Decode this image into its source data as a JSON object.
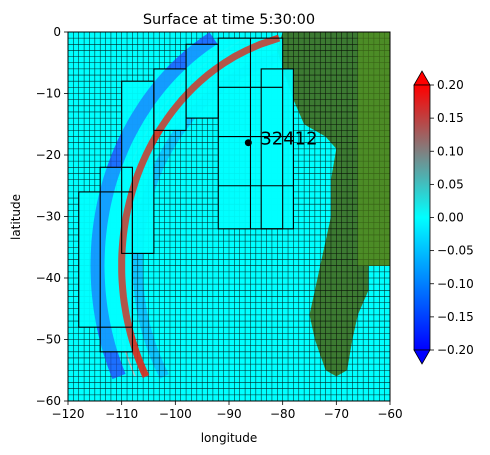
{
  "chart_data": {
    "type": "heatmap",
    "title": "Surface at time 5:30:00",
    "xlabel": "longitude",
    "ylabel": "latitude",
    "xlim": [
      -120,
      -60
    ],
    "ylim": [
      -60,
      0
    ],
    "xticks": [
      -120,
      -110,
      -100,
      -90,
      -80,
      -70,
      -60
    ],
    "yticks": [
      0,
      -10,
      -20,
      -30,
      -40,
      -50,
      -60
    ],
    "x_tick_labels": [
      "−120",
      "−110",
      "−100",
      "−90",
      "−80",
      "−70",
      "−60"
    ],
    "y_tick_labels": [
      "0",
      "−10",
      "−20",
      "−30",
      "−40",
      "−50",
      "−60"
    ],
    "colorbar": {
      "min": -0.2,
      "max": 0.2,
      "extend": "both",
      "ticks": [
        0.2,
        0.15,
        0.1,
        0.05,
        0.0,
        -0.05,
        -0.1,
        -0.15,
        -0.2
      ],
      "tick_labels": [
        "0.20",
        "0.15",
        "0.10",
        "0.05",
        "0.00",
        "−0.05",
        "−0.10",
        "−0.15",
        "−0.20"
      ],
      "colors": [
        "#0000ff",
        "#00ffff",
        "#808080",
        "#ff0000"
      ]
    },
    "colors": {
      "water": "#00ffff",
      "land": "#3c7a32",
      "land_light": "#5a9a1e",
      "wave_crest": "#d03a2a",
      "wave_trough": "#2060ff",
      "gauge": "#000000"
    },
    "gauge": {
      "label": "32412",
      "x": -86.4,
      "y": -18.0
    },
    "wavefront": {
      "center_lon": -72,
      "center_lat": -38,
      "radius_deg": 38,
      "lat_range": [
        -56,
        -1
      ]
    },
    "fine_grid_spacing_deg": 1,
    "coarse_patches": [
      {
        "x0": -104,
        "x1": -98,
        "y0": -16,
        "y1": -6
      },
      {
        "x0": -98,
        "x1": -92,
        "y0": -14,
        "y1": -2
      },
      {
        "x0": -110,
        "x1": -104,
        "y0": -36,
        "y1": -8
      },
      {
        "x0": -114,
        "x1": -108,
        "y0": -52,
        "y1": -22
      },
      {
        "x0": -92,
        "x1": -80,
        "y0": -32,
        "y1": -1
      },
      {
        "x0": -84,
        "x1": -78,
        "y0": -32,
        "y1": -6
      },
      {
        "x0": -118,
        "x1": -108,
        "y0": -48,
        "y1": -26
      }
    ],
    "land_region": [
      [
        -80,
        0
      ],
      [
        -60,
        0
      ],
      [
        -60,
        -38
      ],
      [
        -64,
        -38
      ],
      [
        -64,
        -42
      ],
      [
        -66,
        -46
      ],
      [
        -67,
        -50
      ],
      [
        -68,
        -55
      ],
      [
        -70,
        -56
      ],
      [
        -72,
        -55
      ],
      [
        -74,
        -50
      ],
      [
        -75,
        -46
      ],
      [
        -74,
        -42
      ],
      [
        -73,
        -38
      ],
      [
        -71,
        -30
      ],
      [
        -71,
        -24
      ],
      [
        -70,
        -19
      ],
      [
        -72,
        -17
      ],
      [
        -76,
        -15
      ],
      [
        -78,
        -11
      ],
      [
        -80,
        -6
      ],
      [
        -81,
        -3
      ],
      [
        -80,
        0
      ]
    ]
  }
}
